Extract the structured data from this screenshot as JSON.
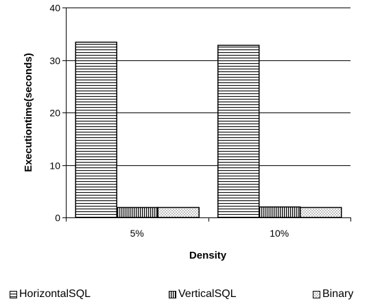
{
  "chart_data": {
    "type": "bar",
    "title": "",
    "xlabel": "Density",
    "ylabel": "Executiontime(seconds)",
    "ylim": [
      0,
      40
    ],
    "yticks": [
      0,
      10,
      20,
      30,
      40
    ],
    "grid": true,
    "legend_position": "bottom",
    "categories": [
      "5%",
      "10%"
    ],
    "series": [
      {
        "name": "HorizontalSQL",
        "values": [
          33.4,
          32.8
        ],
        "pattern": "horizontal-lines"
      },
      {
        "name": "VerticalSQL",
        "values": [
          1.9,
          2.0
        ],
        "pattern": "vertical-lines"
      },
      {
        "name": "Binary",
        "values": [
          1.9,
          1.9
        ],
        "pattern": "dots"
      }
    ]
  },
  "legend": {
    "items": [
      "HorizontalSQL",
      "VerticalSQL",
      "Binary"
    ]
  }
}
